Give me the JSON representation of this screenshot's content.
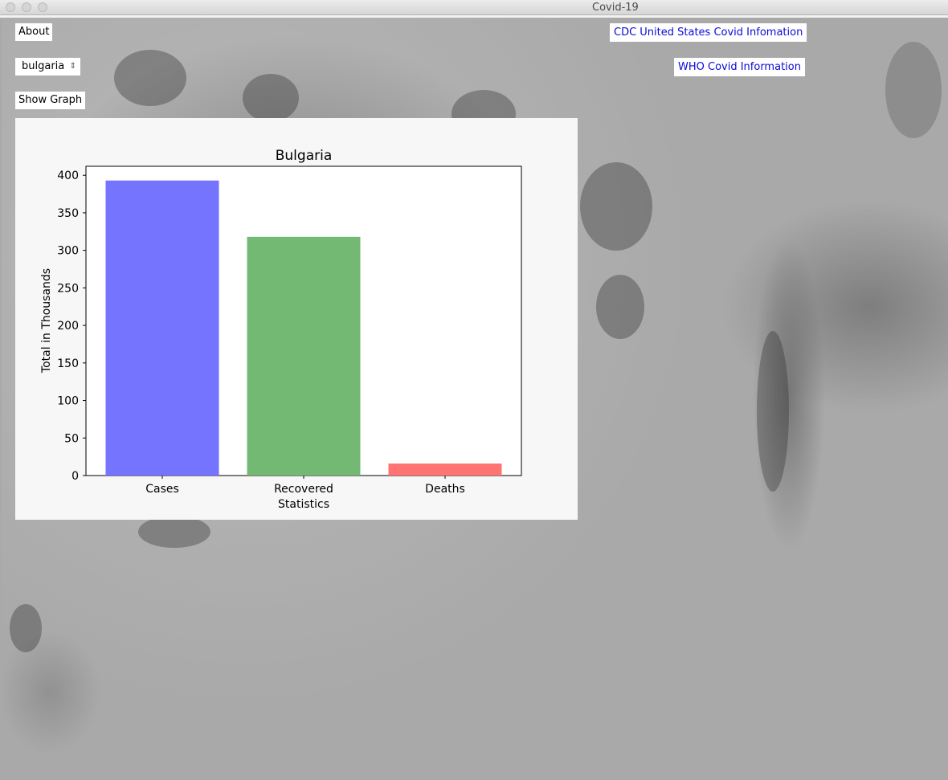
{
  "window": {
    "title": "Covid-19"
  },
  "toolbar": {
    "about_label": "About",
    "country_selected": "bulgaria",
    "show_graph_label": "Show Graph",
    "cdc_link": "CDC United States Covid Infomation",
    "who_link": "WHO Covid Information"
  },
  "colors": {
    "link": "#0a0ad8",
    "cases": "#7474ff",
    "recovered": "#73b873",
    "deaths": "#ff7373"
  },
  "chart_data": {
    "type": "bar",
    "title": "Bulgaria",
    "xlabel": "Statistics",
    "ylabel": "Total in Thousands",
    "categories": [
      "Cases",
      "Recovered",
      "Deaths"
    ],
    "values": [
      393,
      318,
      16
    ],
    "ylim": [
      0,
      412
    ],
    "yticks": [
      0,
      50,
      100,
      150,
      200,
      250,
      300,
      350,
      400
    ],
    "grid": false
  }
}
